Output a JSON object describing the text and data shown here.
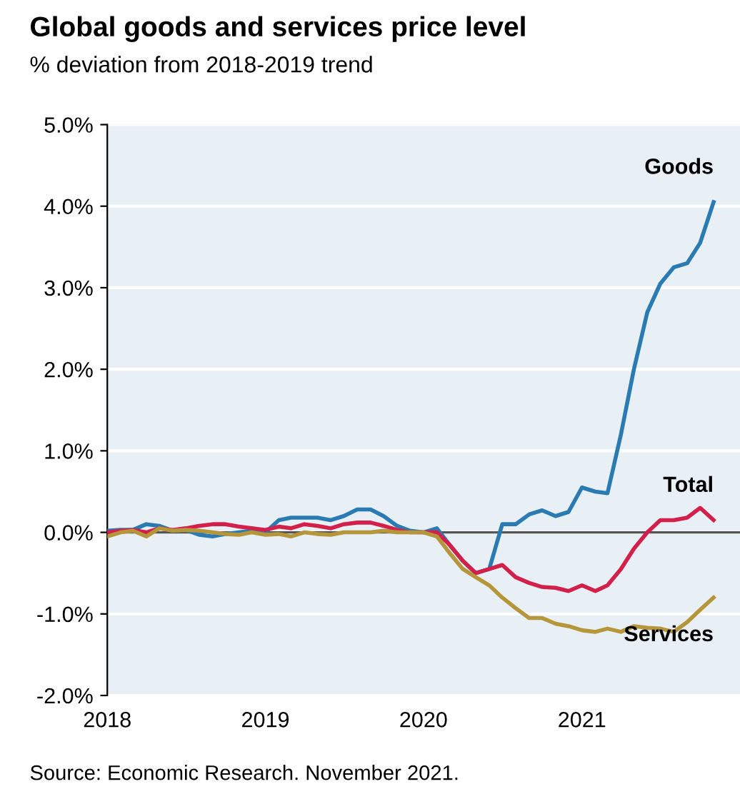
{
  "chart_data": {
    "type": "line",
    "title": "Global goods and services price level",
    "subtitle": "% deviation from 2018-2019 trend",
    "x": [
      "2018-01",
      "2018-02",
      "2018-03",
      "2018-04",
      "2018-05",
      "2018-06",
      "2018-07",
      "2018-08",
      "2018-09",
      "2018-10",
      "2018-11",
      "2018-12",
      "2019-01",
      "2019-02",
      "2019-03",
      "2019-04",
      "2019-05",
      "2019-06",
      "2019-07",
      "2019-08",
      "2019-09",
      "2019-10",
      "2019-11",
      "2019-12",
      "2020-01",
      "2020-02",
      "2020-03",
      "2020-04",
      "2020-05",
      "2020-06",
      "2020-07",
      "2020-08",
      "2020-09",
      "2020-10",
      "2020-11",
      "2020-12",
      "2021-01",
      "2021-02",
      "2021-03",
      "2021-04",
      "2021-05",
      "2021-06",
      "2021-07",
      "2021-08",
      "2021-09",
      "2021-10",
      "2021-11"
    ],
    "series": [
      {
        "name": "Goods",
        "color": "#2b7bb3",
        "values": [
          0.02,
          0.03,
          0.03,
          0.1,
          0.08,
          0.02,
          0.03,
          -0.03,
          -0.05,
          -0.02,
          0.0,
          0.02,
          0.0,
          0.15,
          0.18,
          0.18,
          0.18,
          0.15,
          0.2,
          0.28,
          0.28,
          0.2,
          0.08,
          0.02,
          0.0,
          0.05,
          -0.15,
          -0.35,
          -0.5,
          -0.45,
          0.1,
          0.1,
          0.22,
          0.27,
          0.2,
          0.25,
          0.55,
          0.5,
          0.48,
          1.2,
          2.0,
          2.7,
          3.05,
          3.25,
          3.3,
          3.55,
          4.05
        ]
      },
      {
        "name": "Total",
        "color": "#d2204a",
        "values": [
          0.0,
          0.02,
          0.03,
          0.0,
          0.05,
          0.03,
          0.05,
          0.08,
          0.1,
          0.1,
          0.07,
          0.05,
          0.03,
          0.07,
          0.05,
          0.1,
          0.08,
          0.05,
          0.1,
          0.12,
          0.12,
          0.08,
          0.03,
          0.0,
          0.0,
          0.0,
          -0.15,
          -0.35,
          -0.5,
          -0.45,
          -0.4,
          -0.55,
          -0.62,
          -0.67,
          -0.68,
          -0.72,
          -0.65,
          -0.72,
          -0.65,
          -0.45,
          -0.2,
          0.0,
          0.15,
          0.15,
          0.18,
          0.3,
          0.15
        ]
      },
      {
        "name": "Services",
        "color": "#b5963a",
        "values": [
          -0.05,
          0.0,
          0.02,
          -0.05,
          0.05,
          0.02,
          0.03,
          0.02,
          0.0,
          -0.02,
          -0.03,
          0.0,
          -0.03,
          -0.02,
          -0.05,
          0.0,
          -0.02,
          -0.03,
          0.0,
          0.0,
          0.0,
          0.02,
          0.0,
          0.0,
          0.0,
          -0.05,
          -0.25,
          -0.45,
          -0.55,
          -0.65,
          -0.8,
          -0.93,
          -1.05,
          -1.05,
          -1.12,
          -1.15,
          -1.2,
          -1.22,
          -1.18,
          -1.22,
          -1.15,
          -1.17,
          -1.18,
          -1.22,
          -1.1,
          -0.95,
          -0.8
        ]
      }
    ],
    "xlim": [
      "2018-01",
      "2022-01"
    ],
    "xticks": [
      "2018",
      "2019",
      "2020",
      "2021"
    ],
    "ylim": [
      -2.0,
      5.0
    ],
    "yticks": [
      {
        "value": -2,
        "label": "-2.0%"
      },
      {
        "value": -1,
        "label": "-1.0%"
      },
      {
        "value": 0,
        "label": "0.0%"
      },
      {
        "value": 1,
        "label": "1.0%"
      },
      {
        "value": 2,
        "label": "2.0%"
      },
      {
        "value": 3,
        "label": "3.0%"
      },
      {
        "value": 4,
        "label": "4.0%"
      },
      {
        "value": 5,
        "label": "5.0%"
      }
    ],
    "grid": "y",
    "legend": false,
    "ref_lines": [
      {
        "axis": "y",
        "value": 0,
        "color": "#555555"
      }
    ],
    "annotations": [
      "Source: Economic Research. November 2021."
    ]
  }
}
